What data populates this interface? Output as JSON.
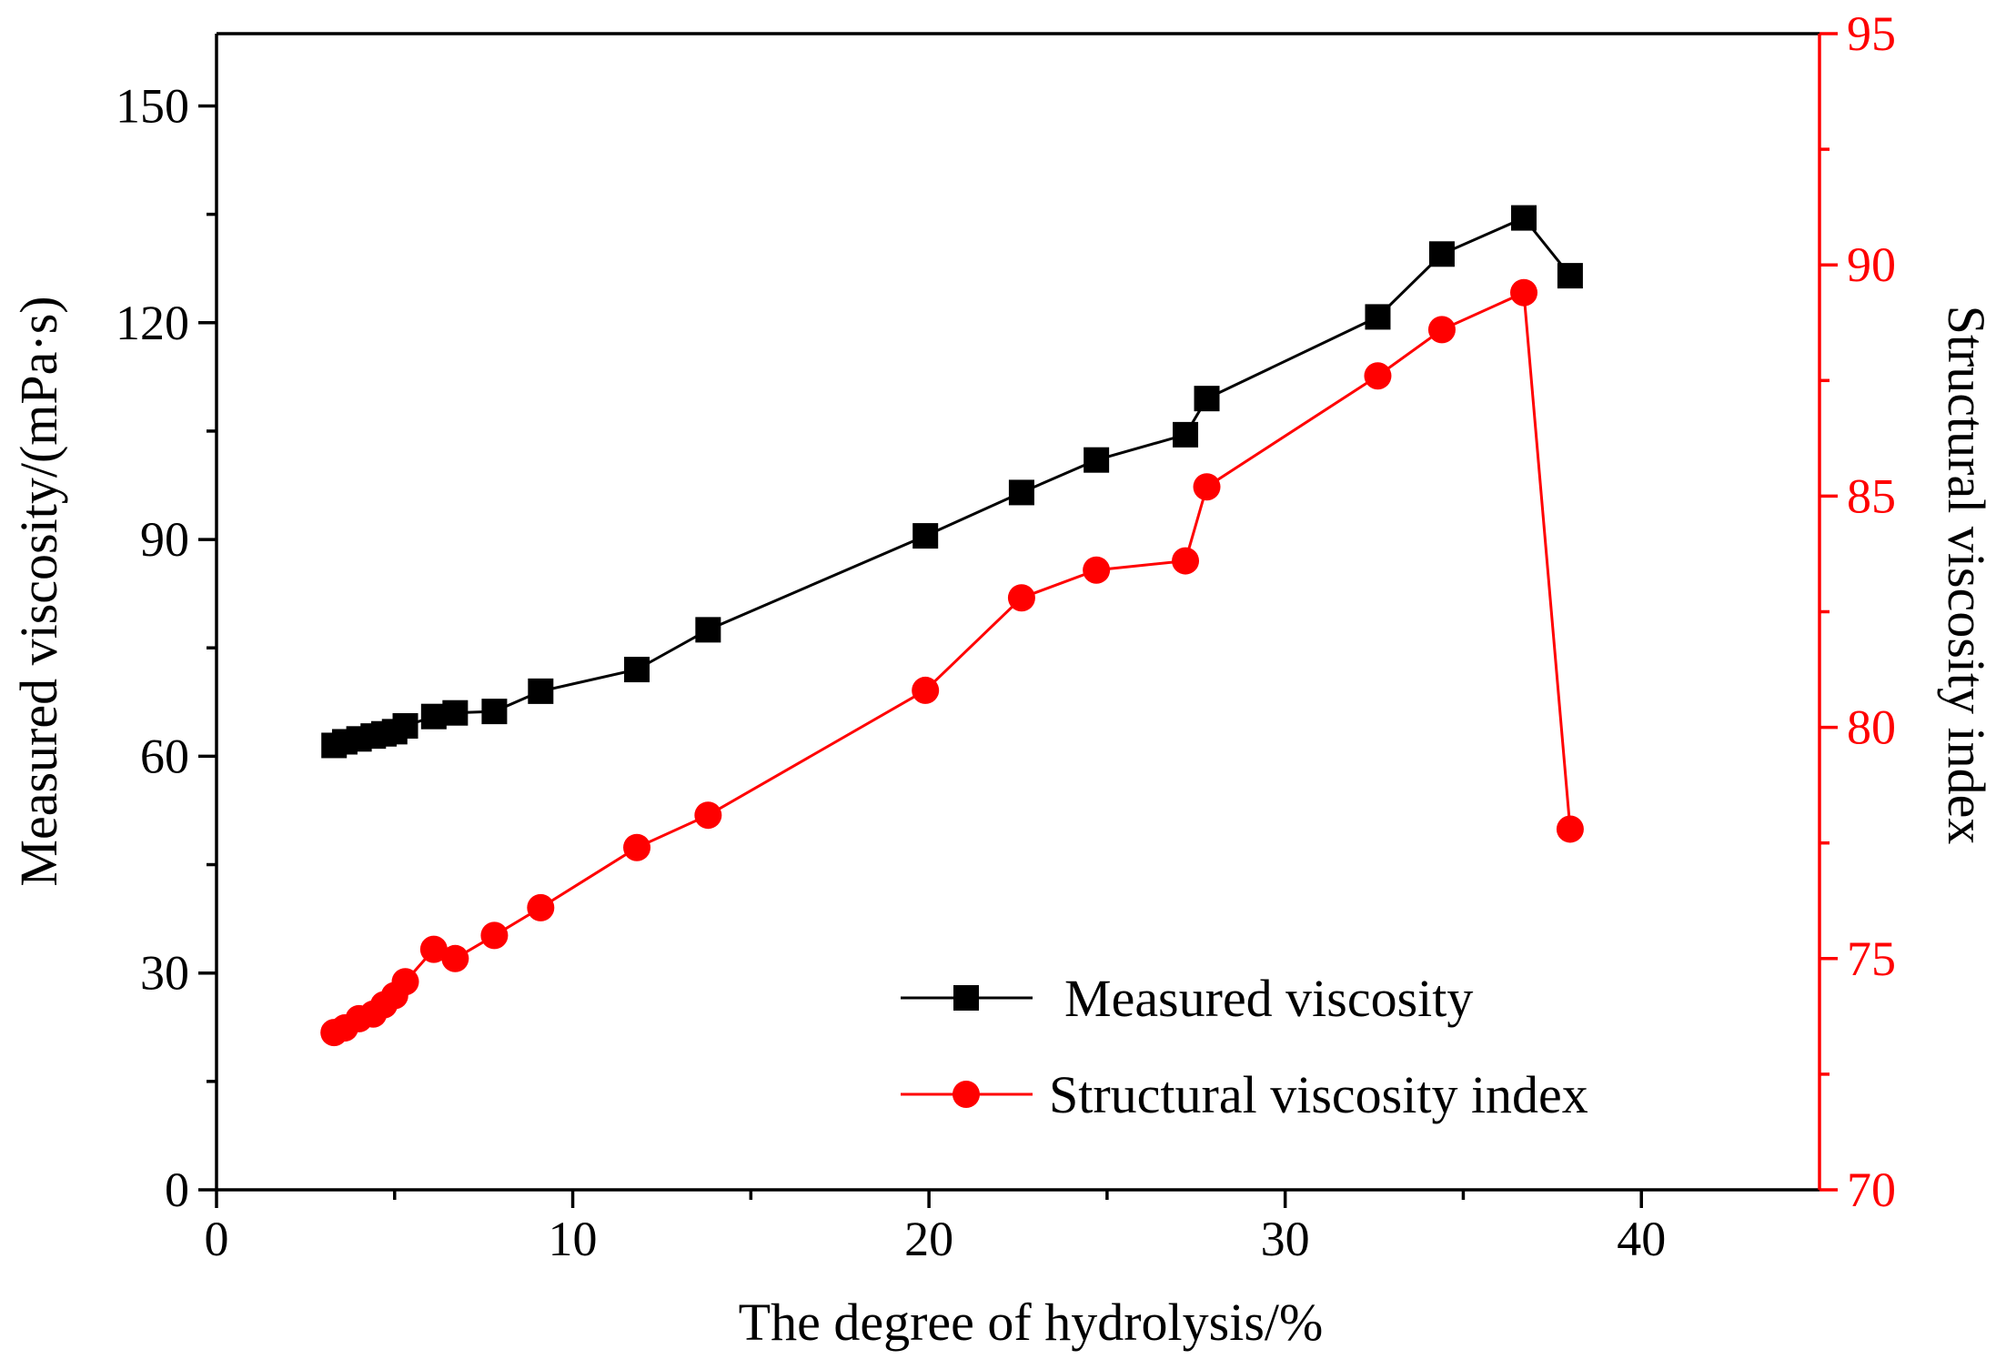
{
  "chart_data": {
    "type": "line",
    "title": "",
    "xlabel": "The degree of hydrolysis/%",
    "ylabel": "Measured viscosity/(mPa·s)",
    "y2label": "Structural viscosity index",
    "xlim": [
      0,
      45
    ],
    "ylim": [
      0,
      160
    ],
    "y2lim": [
      70,
      95
    ],
    "xticks": [
      0,
      10,
      20,
      30,
      40
    ],
    "xtick_labels": [
      "0",
      "10",
      "20",
      "30",
      "40"
    ],
    "yticks": [
      0,
      30,
      60,
      90,
      120,
      150
    ],
    "ytick_labels": [
      "0",
      "30",
      "60",
      "90",
      "120",
      "150"
    ],
    "y2ticks": [
      70,
      75,
      80,
      85,
      90,
      95
    ],
    "y2tick_labels": [
      "70",
      "75",
      "80",
      "85",
      "90",
      "95"
    ],
    "legend_position": "bottom-right",
    "series": [
      {
        "name": "Measured viscosity",
        "axis": "left",
        "color": "#000000",
        "marker": "square",
        "x": [
          3.3,
          3.6,
          4.0,
          4.4,
          4.7,
          5.0,
          5.3,
          6.1,
          6.7,
          7.8,
          9.1,
          11.8,
          13.8,
          19.9,
          22.6,
          24.7,
          27.2,
          27.8,
          32.6,
          34.4,
          36.7,
          38.0
        ],
        "values": [
          61.5,
          62.0,
          62.4,
          62.8,
          63.1,
          63.4,
          64.2,
          65.5,
          66.0,
          66.2,
          69.0,
          72.0,
          77.5,
          90.5,
          96.5,
          101.0,
          104.5,
          109.5,
          120.8,
          129.5,
          134.5,
          126.5
        ]
      },
      {
        "name": "Structural viscosity index",
        "axis": "right",
        "color": "#ff0000",
        "marker": "circle",
        "x": [
          3.3,
          3.6,
          4.0,
          4.4,
          4.7,
          5.0,
          5.3,
          6.1,
          6.7,
          7.8,
          9.1,
          11.8,
          13.8,
          19.9,
          22.6,
          24.7,
          27.2,
          27.8,
          32.6,
          34.4,
          36.7,
          38.0
        ],
        "values": [
          73.4,
          73.5,
          73.7,
          73.8,
          74.0,
          74.2,
          74.5,
          75.2,
          75.0,
          75.5,
          76.1,
          77.4,
          78.1,
          80.8,
          82.8,
          83.4,
          83.6,
          85.2,
          87.6,
          88.6,
          89.4,
          77.8
        ]
      }
    ]
  }
}
